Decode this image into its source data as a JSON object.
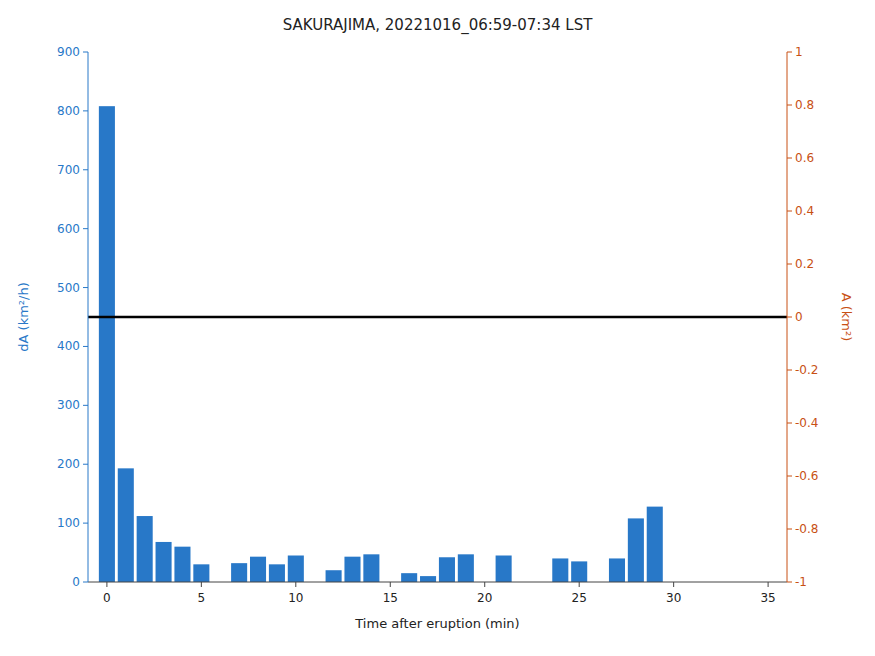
{
  "chart_data": {
    "type": "bar",
    "title": "SAKURAJIMA, 20221016_06:59-07:34 LST",
    "x_label": "Time after eruption (min)",
    "y_label": "dA (km²/h)",
    "y2_label": "A (km²)",
    "x": [
      0,
      1,
      2,
      3,
      4,
      5,
      7,
      8,
      9,
      10,
      12,
      13,
      14,
      16,
      17,
      18,
      19,
      21,
      24,
      25,
      27,
      28,
      29,
      33,
      34
    ],
    "values": [
      808,
      193,
      112,
      68,
      60,
      30,
      32,
      43,
      30,
      45,
      20,
      43,
      47,
      15,
      10,
      42,
      47,
      45,
      40,
      35,
      40,
      108,
      128,
      0,
      0
    ],
    "color": "#2878c8",
    "xlim": [
      -1,
      36
    ],
    "xticks": [
      0,
      5,
      10,
      15,
      20,
      25,
      30,
      35
    ],
    "ylim": [
      0,
      900
    ],
    "yticks": [
      0,
      100,
      200,
      300,
      400,
      500,
      600,
      700,
      800,
      900
    ],
    "y2lim": [
      -1,
      1
    ],
    "y2ticks": [
      -1,
      -0.8,
      -0.6,
      -0.4,
      -0.2,
      0,
      0.2,
      0.4,
      0.6,
      0.8,
      1
    ],
    "reference_line": 450,
    "grid": false
  }
}
